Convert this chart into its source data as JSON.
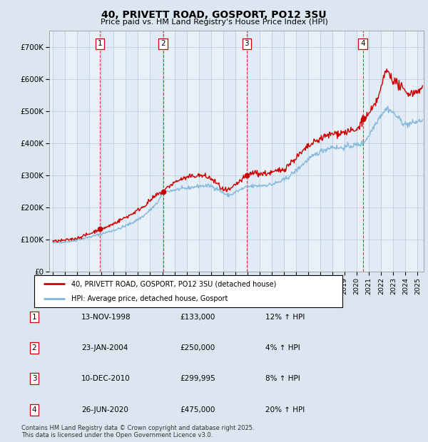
{
  "title": "40, PRIVETT ROAD, GOSPORT, PO12 3SU",
  "subtitle": "Price paid vs. HM Land Registry's House Price Index (HPI)",
  "ylim": [
    0,
    750000
  ],
  "yticks": [
    0,
    100000,
    200000,
    300000,
    400000,
    500000,
    600000,
    700000
  ],
  "ytick_labels": [
    "£0",
    "£100K",
    "£200K",
    "£300K",
    "£400K",
    "£500K",
    "£600K",
    "£700K"
  ],
  "xlim_start": 1994.7,
  "xlim_end": 2025.5,
  "hpi_color": "#7ab4d8",
  "price_color": "#cc0000",
  "background_color": "#dce6f0",
  "plot_background": "#e8f0f8",
  "grid_color": "#c0cfe0",
  "transactions": [
    {
      "label": "1",
      "date": "13-NOV-1998",
      "year": 1998.87,
      "price": 133000,
      "pct": "12%",
      "dir": "↑"
    },
    {
      "label": "2",
      "date": "23-JAN-2004",
      "year": 2004.07,
      "price": 250000,
      "pct": "4%",
      "dir": "↑"
    },
    {
      "label": "3",
      "date": "10-DEC-2010",
      "year": 2010.94,
      "price": 299995,
      "pct": "8%",
      "dir": "↑"
    },
    {
      "label": "4",
      "date": "26-JUN-2020",
      "year": 2020.49,
      "price": 475000,
      "pct": "20%",
      "dir": "↑"
    }
  ],
  "legend_label_price": "40, PRIVETT ROAD, GOSPORT, PO12 3SU (detached house)",
  "legend_label_hpi": "HPI: Average price, detached house, Gosport",
  "footer": "Contains HM Land Registry data © Crown copyright and database right 2025.\nThis data is licensed under the Open Government Licence v3.0.",
  "table_rows": [
    [
      "1",
      "13-NOV-1998",
      "£133,000",
      "12% ↑ HPI"
    ],
    [
      "2",
      "23-JAN-2004",
      "£250,000",
      "4% ↑ HPI"
    ],
    [
      "3",
      "10-DEC-2010",
      "£299,995",
      "8% ↑ HPI"
    ],
    [
      "4",
      "26-JUN-2020",
      "£475,000",
      "20% ↑ HPI"
    ]
  ]
}
